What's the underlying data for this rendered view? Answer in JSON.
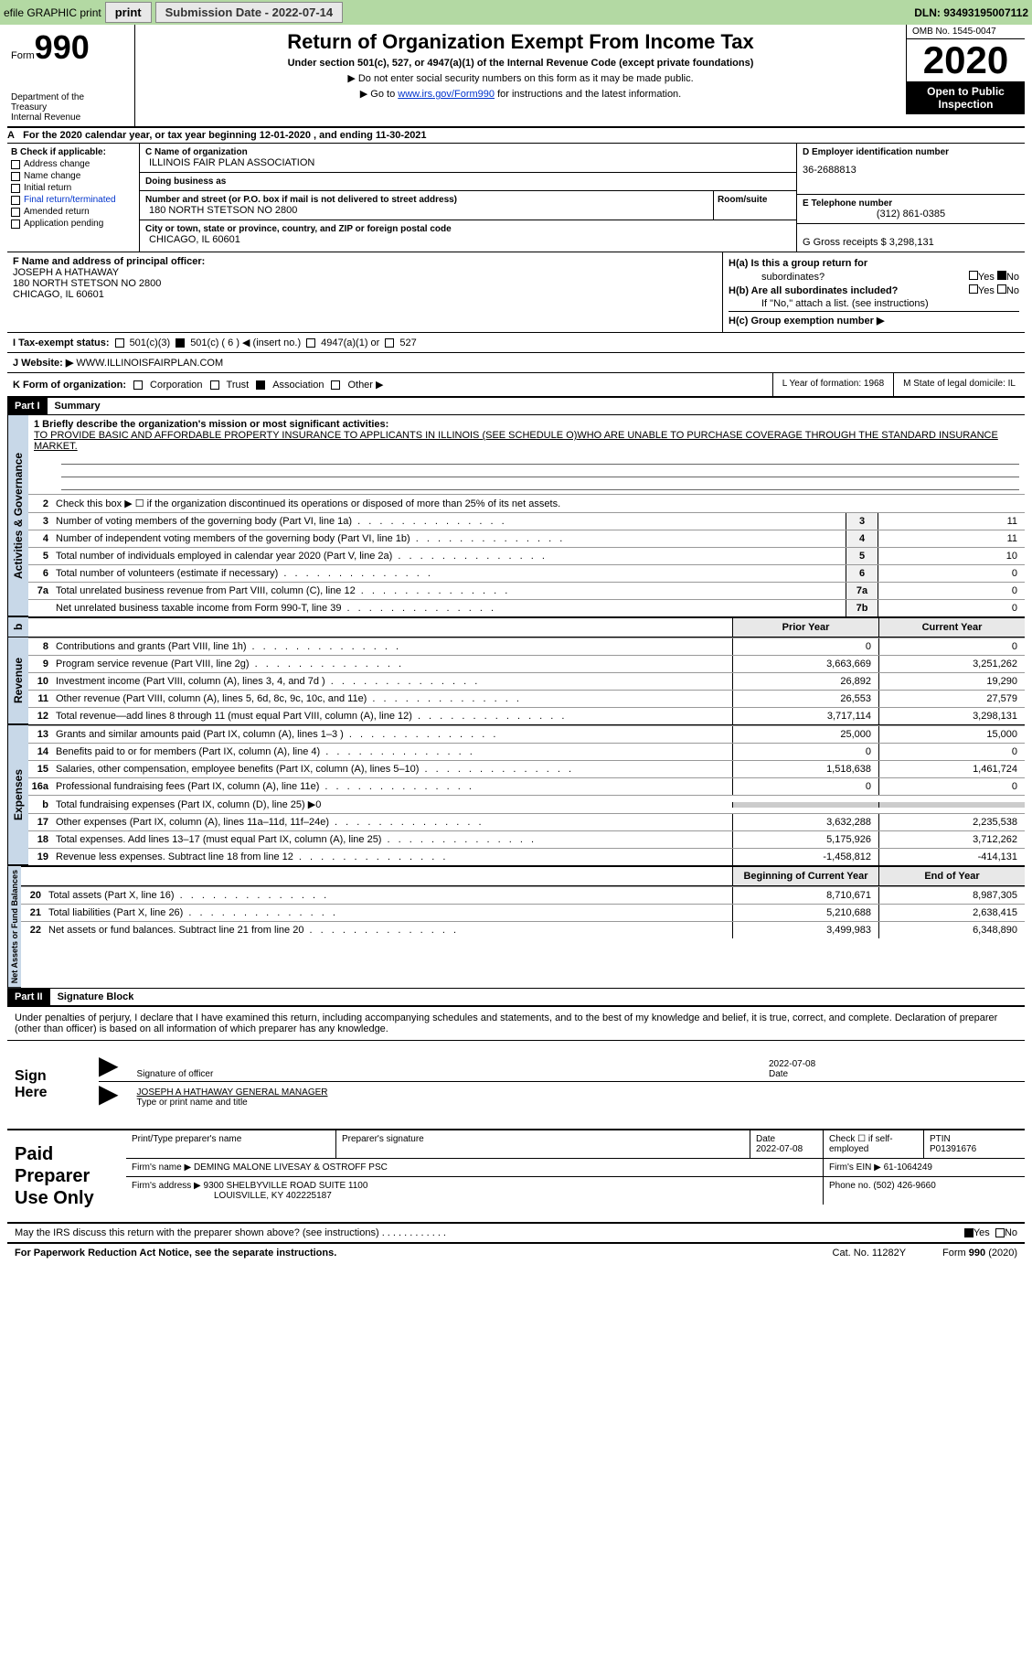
{
  "topbar": {
    "efile_label": "efile GRAPHIC print",
    "submission_label": "Submission Date - 2022-07-14",
    "dln": "DLN: 93493195007112"
  },
  "header": {
    "form_prefix": "Form",
    "form_number": "990",
    "dept": "Department of the Treasury\nInternal Revenue",
    "title": "Return of Organization Exempt From Income Tax",
    "subtitle": "Under section 501(c), 527, or 4947(a)(1) of the Internal Revenue Code (except private foundations)",
    "note1": "▶ Do not enter social security numbers on this form as it may be made public.",
    "note2_prefix": "▶ Go to ",
    "note2_link": "www.irs.gov/Form990",
    "note2_suffix": " for instructions and the latest information.",
    "omb": "OMB No. 1545-0047",
    "year": "2020",
    "open_public": "Open to Public Inspection"
  },
  "line_a": "For the 2020 calendar year, or tax year beginning 12-01-2020    , and ending 11-30-2021",
  "section_b": {
    "label": "B Check if applicable:",
    "items": [
      "Address change",
      "Name change",
      "Initial return",
      "Final return/terminated",
      "Amended return",
      "Application pending"
    ]
  },
  "section_c": {
    "name_label": "C Name of organization",
    "name": "ILLINOIS FAIR PLAN ASSOCIATION",
    "dba_label": "Doing business as",
    "dba": "",
    "street_label": "Number and street (or P.O. box if mail is not delivered to street address)",
    "street": "180 NORTH STETSON NO 2800",
    "room_label": "Room/suite",
    "room": "",
    "city_label": "City or town, state or province, country, and ZIP or foreign postal code",
    "city": "CHICAGO, IL  60601"
  },
  "section_d": {
    "label": "D Employer identification number",
    "value": "36-2688813"
  },
  "section_e": {
    "label": "E Telephone number",
    "value": "(312) 861-0385"
  },
  "section_g": {
    "label": "G Gross receipts $ 3,298,131"
  },
  "section_f": {
    "label": "F  Name and address of principal officer:",
    "name": "JOSEPH A HATHAWAY",
    "street": "180 NORTH STETSON NO 2800",
    "city": "CHICAGO, IL  60601"
  },
  "section_h": {
    "ha_label": "H(a)  Is this a group return for",
    "ha_sub": "subordinates?",
    "hb_label": "H(b)  Are all subordinates included?",
    "hb_note": "If \"No,\" attach a list. (see instructions)",
    "hc_label": "H(c)  Group exemption number ▶",
    "yes": "Yes",
    "no": "No"
  },
  "line_i": {
    "label": "I    Tax-exempt status:",
    "opts": [
      "501(c)(3)",
      "501(c) ( 6 ) ◀ (insert no.)",
      "4947(a)(1) or",
      "527"
    ]
  },
  "line_j": {
    "label": "J   Website: ▶",
    "value": "WWW.ILLINOISFAIRPLAN.COM"
  },
  "line_k": {
    "label": "K Form of organization:",
    "opts": [
      "Corporation",
      "Trust",
      "Association",
      "Other ▶"
    ]
  },
  "line_l": {
    "label": "L Year of formation: 1968"
  },
  "line_m": {
    "label": "M State of legal domicile: IL"
  },
  "part1": {
    "header": "Part I",
    "title": "Summary"
  },
  "summary": {
    "q1_label": "1   Briefly describe the organization's mission or most significant activities:",
    "q1_text": "TO PROVIDE BASIC AND AFFORDABLE PROPERTY INSURANCE TO APPLICANTS IN ILLINOIS (SEE SCHEDULE O)WHO ARE UNABLE TO PURCHASE COVERAGE THROUGH THE STANDARD INSURANCE MARKET.",
    "q2": "Check this box ▶ ☐  if the organization discontinued its operations or disposed of more than 25% of its net assets.",
    "lines_gov": [
      {
        "n": "3",
        "t": "Number of voting members of the governing body (Part VI, line 1a)",
        "box": "3",
        "v": "11"
      },
      {
        "n": "4",
        "t": "Number of independent voting members of the governing body (Part VI, line 1b)",
        "box": "4",
        "v": "11"
      },
      {
        "n": "5",
        "t": "Total number of individuals employed in calendar year 2020 (Part V, line 2a)",
        "box": "5",
        "v": "10"
      },
      {
        "n": "6",
        "t": "Total number of volunteers (estimate if necessary)",
        "box": "6",
        "v": "0"
      },
      {
        "n": "7a",
        "t": "Total unrelated business revenue from Part VIII, column (C), line 12",
        "box": "7a",
        "v": "0"
      },
      {
        "n": "",
        "t": "Net unrelated business taxable income from Form 990-T, line 39",
        "box": "7b",
        "v": "0"
      }
    ]
  },
  "col_headers": {
    "prior": "Prior Year",
    "current": "Current Year",
    "begin": "Beginning of Current Year",
    "end": "End of Year"
  },
  "revenue": [
    {
      "n": "8",
      "t": "Contributions and grants (Part VIII, line 1h)",
      "p": "0",
      "c": "0"
    },
    {
      "n": "9",
      "t": "Program service revenue (Part VIII, line 2g)",
      "p": "3,663,669",
      "c": "3,251,262"
    },
    {
      "n": "10",
      "t": "Investment income (Part VIII, column (A), lines 3, 4, and 7d )",
      "p": "26,892",
      "c": "19,290"
    },
    {
      "n": "11",
      "t": "Other revenue (Part VIII, column (A), lines 5, 6d, 8c, 9c, 10c, and 11e)",
      "p": "26,553",
      "c": "27,579"
    },
    {
      "n": "12",
      "t": "Total revenue—add lines 8 through 11 (must equal Part VIII, column (A), line 12)",
      "p": "3,717,114",
      "c": "3,298,131"
    }
  ],
  "expenses": [
    {
      "n": "13",
      "t": "Grants and similar amounts paid (Part IX, column (A), lines 1–3 )",
      "p": "25,000",
      "c": "15,000"
    },
    {
      "n": "14",
      "t": "Benefits paid to or for members (Part IX, column (A), line 4)",
      "p": "0",
      "c": "0"
    },
    {
      "n": "15",
      "t": "Salaries, other compensation, employee benefits (Part IX, column (A), lines 5–10)",
      "p": "1,518,638",
      "c": "1,461,724"
    },
    {
      "n": "16a",
      "t": "Professional fundraising fees (Part IX, column (A), line 11e)",
      "p": "0",
      "c": "0"
    },
    {
      "n": "b",
      "t": "Total fundraising expenses (Part IX, column (D), line 25) ▶0",
      "p": "",
      "c": "",
      "shaded": true
    },
    {
      "n": "17",
      "t": "Other expenses (Part IX, column (A), lines 11a–11d, 11f–24e)",
      "p": "3,632,288",
      "c": "2,235,538"
    },
    {
      "n": "18",
      "t": "Total expenses. Add lines 13–17 (must equal Part IX, column (A), line 25)",
      "p": "5,175,926",
      "c": "3,712,262"
    },
    {
      "n": "19",
      "t": "Revenue less expenses. Subtract line 18 from line 12",
      "p": "-1,458,812",
      "c": "-414,131"
    }
  ],
  "netassets": [
    {
      "n": "20",
      "t": "Total assets (Part X, line 16)",
      "p": "8,710,671",
      "c": "8,987,305"
    },
    {
      "n": "21",
      "t": "Total liabilities (Part X, line 26)",
      "p": "5,210,688",
      "c": "2,638,415"
    },
    {
      "n": "22",
      "t": "Net assets or fund balances. Subtract line 21 from line 20",
      "p": "3,499,983",
      "c": "6,348,890"
    }
  ],
  "vlabels": {
    "gov": "Activities & Governance",
    "rev": "Revenue",
    "exp": "Expenses",
    "net": "Net Assets or Fund Balances"
  },
  "part2": {
    "header": "Part II",
    "title": "Signature Block"
  },
  "sig": {
    "intro": "Under penalties of perjury, I declare that I have examined this return, including accompanying schedules and statements, and to the best of my knowledge and belief, it is true, correct, and complete. Declaration of preparer (other than officer) is based on all information of which preparer has any knowledge.",
    "sign_here": "Sign Here",
    "sig_label": "Signature of officer",
    "date_label": "Date",
    "date": "2022-07-08",
    "name": "JOSEPH A HATHAWAY  GENERAL MANAGER",
    "name_label": "Type or print name and title"
  },
  "preparer": {
    "left": "Paid Preparer Use Only",
    "name_label": "Print/Type preparer's name",
    "sig_label": "Preparer's signature",
    "date_label": "Date",
    "date": "2022-07-08",
    "self_emp": "Check ☐  if self-employed",
    "ptin_label": "PTIN",
    "ptin": "P01391676",
    "firm_name_label": "Firm's name     ▶",
    "firm_name": "DEMING MALONE LIVESAY & OSTROFF PSC",
    "firm_ein_label": "Firm's EIN ▶",
    "firm_ein": "61-1064249",
    "firm_addr_label": "Firm's address ▶",
    "firm_addr1": "9300 SHELBYVILLE ROAD SUITE 1100",
    "firm_addr2": "LOUISVILLE, KY  402225187",
    "phone_label": "Phone no.",
    "phone": "(502) 426-9660"
  },
  "discuss": {
    "text": "May the IRS discuss this return with the preparer shown above? (see instructions)",
    "yes": "Yes",
    "no": "No"
  },
  "footer": {
    "pra": "For Paperwork Reduction Act Notice, see the separate instructions.",
    "cat": "Cat. No. 11282Y",
    "form": "Form 990 (2020)"
  },
  "b_row": "b"
}
